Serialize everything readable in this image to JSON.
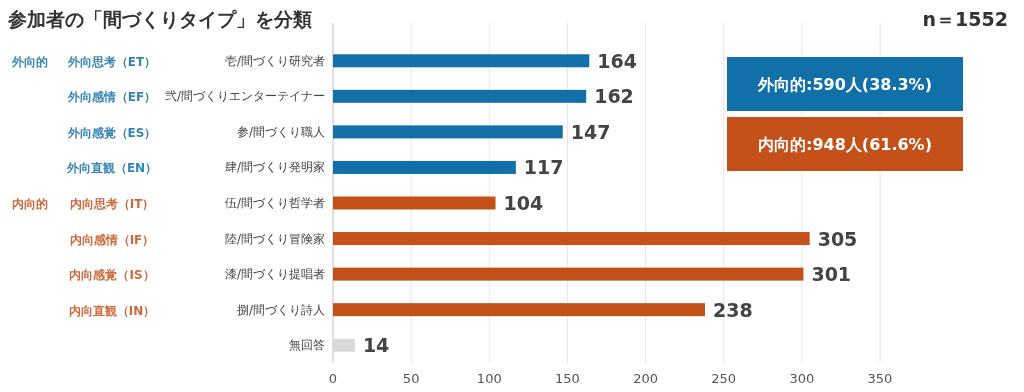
{
  "chart_data": {
    "type": "bar",
    "orientation": "horizontal",
    "title": "参加者の「間づくりタイプ」を分類",
    "categories": [
      "壱/間づくり研究者",
      "弐/間づくりエンターテイナー",
      "参/間づくり職人",
      "肆/間づくり発明家",
      "伍/間づくり哲学者",
      "陸/間づくり冒険家",
      "漆/間づくり提唱者",
      "捌/間づくり詩人",
      "無回答"
    ],
    "values": [
      164,
      162,
      147,
      117,
      104,
      305,
      301,
      238,
      14
    ],
    "colors": [
      "#1170a8",
      "#1170a8",
      "#1170a8",
      "#1170a8",
      "#c4501a",
      "#c4501a",
      "#c4501a",
      "#c4501a",
      "#d9d9d9"
    ],
    "data_labels": true,
    "xlim": [
      0,
      350
    ],
    "xticks": [
      0,
      50,
      100,
      150,
      200,
      250,
      300,
      350
    ],
    "grid": "x",
    "annotations": [
      "n＝1552",
      "外向的:590人(38.3%)",
      "内向的:948人(61.6%)",
      "外向的",
      "外向思考（ET）",
      "外向感情（EF）",
      "外向感覚（ES）",
      "外向直観（EN）",
      "内向的",
      "内向思考（IT）",
      "内向感情（IF）",
      "内向感覚（IS）",
      "内向直観（IN）"
    ]
  }
}
